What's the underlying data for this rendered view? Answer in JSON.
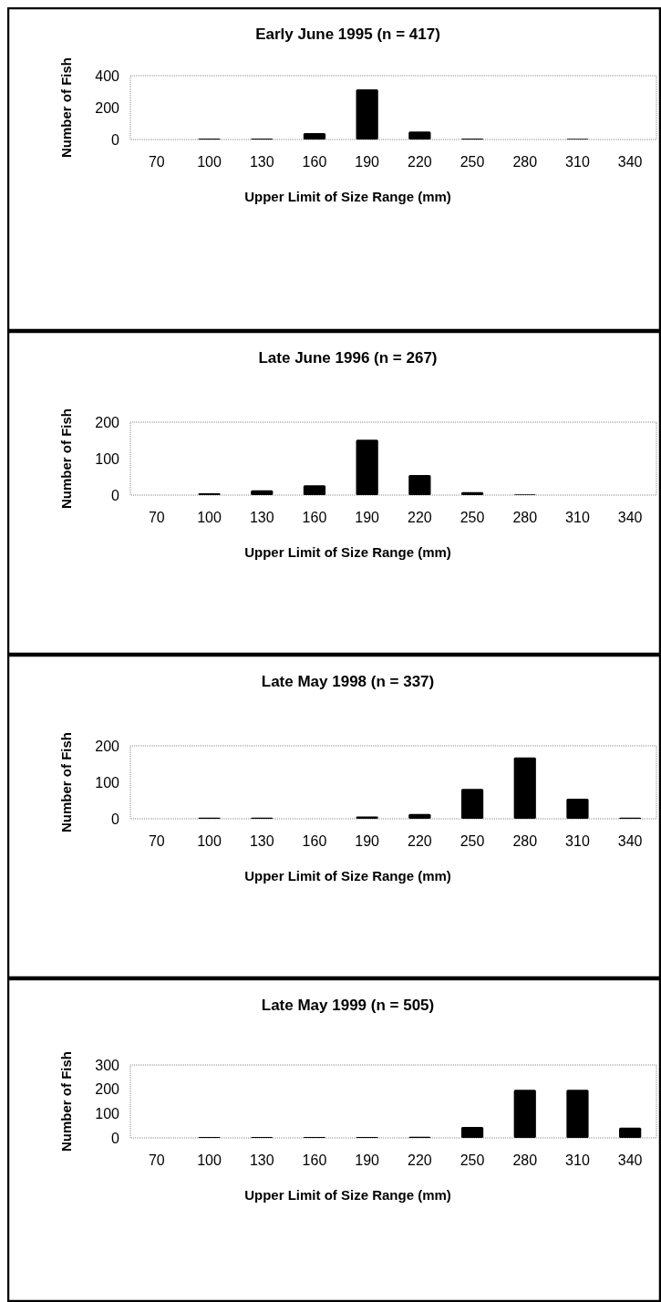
{
  "chart_data": [
    {
      "type": "bar",
      "title": "Early June 1995 (n = 417)",
      "xlabel": "Upper Limit of Size Range (mm)",
      "ylabel": "Number of Fish",
      "categories": [
        "70",
        "100",
        "130",
        "160",
        "190",
        "220",
        "250",
        "280",
        "310",
        "340"
      ],
      "values": [
        0,
        6,
        6,
        40,
        315,
        50,
        6,
        0,
        5,
        0
      ],
      "color": "#000000",
      "ylim": [
        0,
        400
      ],
      "yticks": [
        0,
        200,
        400
      ],
      "grid": false
    },
    {
      "type": "bar",
      "title": "Late June 1996 (n = 267)",
      "xlabel": "Upper Limit of Size Range (mm)",
      "ylabel": "Number of Fish",
      "categories": [
        "70",
        "100",
        "130",
        "160",
        "190",
        "220",
        "250",
        "280",
        "310",
        "340"
      ],
      "values": [
        0,
        5,
        13,
        27,
        152,
        55,
        8,
        2,
        0,
        0
      ],
      "color": "#000000",
      "ylim": [
        0,
        200
      ],
      "yticks": [
        0,
        100,
        200
      ],
      "grid": false
    },
    {
      "type": "bar",
      "title": "Late May 1998 (n = 337)",
      "xlabel": "Upper Limit of Size Range (mm)",
      "ylabel": "Number of Fish",
      "categories": [
        "70",
        "100",
        "130",
        "160",
        "190",
        "220",
        "250",
        "280",
        "310",
        "340"
      ],
      "values": [
        0,
        3,
        3,
        0,
        6,
        13,
        82,
        168,
        55,
        3
      ],
      "color": "#000000",
      "ylim": [
        0,
        200
      ],
      "yticks": [
        0,
        100,
        200
      ],
      "grid": false
    },
    {
      "type": "bar",
      "title": "Late May 1999 (n = 505)",
      "xlabel": "Upper Limit of Size Range (mm)",
      "ylabel": "Number of Fish",
      "categories": [
        "70",
        "100",
        "130",
        "160",
        "190",
        "220",
        "250",
        "280",
        "310",
        "340"
      ],
      "values": [
        0,
        4,
        4,
        4,
        4,
        5,
        45,
        198,
        198,
        42
      ],
      "color": "#000000",
      "ylim": [
        0,
        300
      ],
      "yticks": [
        0,
        100,
        200,
        300
      ],
      "grid": false
    }
  ]
}
